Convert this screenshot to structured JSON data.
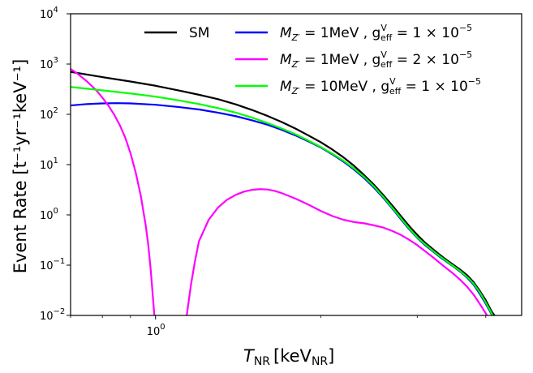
{
  "chart_data": {
    "type": "line",
    "title": "",
    "xlabel_main": "T",
    "xlabel_sub": "NR",
    "xlabel_unit": "[keV",
    "xlabel_unit_sub": "NR",
    "xlabel_close": "]",
    "ylabel": "Event Rate [t⁻¹yr⁻¹keV⁻¹]",
    "xscale": "log",
    "yscale": "log",
    "xlim": [
      0.7,
      4.65
    ],
    "ylim": [
      0.01,
      10000
    ],
    "x_ticks": [
      {
        "value": 1,
        "base": "10",
        "exp": "0"
      }
    ],
    "y_ticks": [
      {
        "value": 0.01,
        "base": "10",
        "exp": "−2"
      },
      {
        "value": 0.1,
        "base": "10",
        "exp": "−1"
      },
      {
        "value": 1,
        "base": "10",
        "exp": "0"
      },
      {
        "value": 10,
        "base": "10",
        "exp": "1"
      },
      {
        "value": 100,
        "base": "10",
        "exp": "2"
      },
      {
        "value": 1000,
        "base": "10",
        "exp": "3"
      },
      {
        "value": 10000,
        "base": "10",
        "exp": "4"
      }
    ],
    "x_minor_ticks": [
      0.7,
      0.8,
      0.9,
      2,
      3,
      4
    ],
    "legend_position": "top-right",
    "series": [
      {
        "name": "SM",
        "label_main": "SM",
        "color": "#000000",
        "points": [
          [
            0.7,
            700
          ],
          [
            0.8,
            550
          ],
          [
            0.9,
            450
          ],
          [
            1.0,
            370
          ],
          [
            1.1,
            300
          ],
          [
            1.2,
            245
          ],
          [
            1.3,
            200
          ],
          [
            1.4,
            158
          ],
          [
            1.5,
            122
          ],
          [
            1.6,
            93
          ],
          [
            1.7,
            70
          ],
          [
            1.8,
            52
          ],
          [
            1.9,
            38
          ],
          [
            2.0,
            28
          ],
          [
            2.1,
            20
          ],
          [
            2.2,
            14
          ],
          [
            2.3,
            9.5
          ],
          [
            2.4,
            6.2
          ],
          [
            2.5,
            4.0
          ],
          [
            2.6,
            2.5
          ],
          [
            2.7,
            1.55
          ],
          [
            2.8,
            0.95
          ],
          [
            2.9,
            0.6
          ],
          [
            3.0,
            0.4
          ],
          [
            3.1,
            0.28
          ],
          [
            3.2,
            0.21
          ],
          [
            3.3,
            0.16
          ],
          [
            3.4,
            0.125
          ],
          [
            3.5,
            0.1
          ],
          [
            3.6,
            0.08
          ],
          [
            3.7,
            0.063
          ],
          [
            3.8,
            0.046
          ],
          [
            3.9,
            0.031
          ],
          [
            4.0,
            0.02
          ],
          [
            4.1,
            0.012
          ],
          [
            4.15,
            0.01
          ]
        ]
      },
      {
        "name": "MZ'=1MeV, g_eff^V=1e-5",
        "label_main": "M",
        "label_sub": "Z′",
        "label_eq": " = 1MeV , g",
        "label_sup2": "V",
        "label_sub2": "eff",
        "label_tail": " = 1 × 10",
        "label_exp": "−5",
        "color": "#0000ff",
        "points": [
          [
            0.7,
            150
          ],
          [
            0.75,
            160
          ],
          [
            0.8,
            165
          ],
          [
            0.85,
            167
          ],
          [
            0.9,
            165
          ],
          [
            1.0,
            155
          ],
          [
            1.1,
            140
          ],
          [
            1.2,
            125
          ],
          [
            1.3,
            108
          ],
          [
            1.4,
            92
          ],
          [
            1.5,
            76
          ],
          [
            1.6,
            62
          ],
          [
            1.7,
            49
          ],
          [
            1.8,
            38
          ],
          [
            1.9,
            29
          ],
          [
            2.0,
            22
          ],
          [
            2.1,
            16
          ],
          [
            2.2,
            11.5
          ],
          [
            2.3,
            8.0
          ],
          [
            2.4,
            5.4
          ],
          [
            2.5,
            3.5
          ],
          [
            2.6,
            2.2
          ],
          [
            2.7,
            1.35
          ],
          [
            2.8,
            0.82
          ],
          [
            2.9,
            0.52
          ],
          [
            3.0,
            0.35
          ],
          [
            3.1,
            0.25
          ],
          [
            3.2,
            0.19
          ],
          [
            3.3,
            0.145
          ],
          [
            3.4,
            0.115
          ],
          [
            3.5,
            0.092
          ],
          [
            3.6,
            0.073
          ],
          [
            3.7,
            0.056
          ],
          [
            3.8,
            0.041
          ],
          [
            3.9,
            0.027
          ],
          [
            4.0,
            0.017
          ],
          [
            4.1,
            0.0105
          ],
          [
            4.12,
            0.01
          ]
        ]
      },
      {
        "name": "MZ'=1MeV, g_eff^V=2e-5",
        "label_main": "M",
        "label_sub": "Z′",
        "label_eq": " = 1MeV , g",
        "label_sup2": "V",
        "label_sub2": "eff",
        "label_tail": " = 2 × 10",
        "label_exp": "−5",
        "color": "#ff00ff",
        "points": [
          [
            0.7,
            800
          ],
          [
            0.72,
            650
          ],
          [
            0.75,
            450
          ],
          [
            0.78,
            300
          ],
          [
            0.8,
            215
          ],
          [
            0.82,
            150
          ],
          [
            0.84,
            100
          ],
          [
            0.86,
            62
          ],
          [
            0.88,
            35
          ],
          [
            0.9,
            17
          ],
          [
            0.92,
            7
          ],
          [
            0.94,
            2.4
          ],
          [
            0.96,
            0.6
          ],
          [
            0.97,
            0.25
          ],
          [
            0.98,
            0.08
          ],
          [
            0.99,
            0.02
          ],
          [
            0.995,
            0.01
          ]
        ]
      },
      {
        "name": "MZ'=1MeV, g_eff^V=2e-5 (upper branch)",
        "color": "#ff00ff",
        "points": [
          [
            1.14,
            0.01
          ],
          [
            1.16,
            0.04
          ],
          [
            1.18,
            0.12
          ],
          [
            1.2,
            0.3
          ],
          [
            1.25,
            0.8
          ],
          [
            1.3,
            1.4
          ],
          [
            1.35,
            2.0
          ],
          [
            1.4,
            2.5
          ],
          [
            1.45,
            2.9
          ],
          [
            1.5,
            3.15
          ],
          [
            1.55,
            3.25
          ],
          [
            1.6,
            3.2
          ],
          [
            1.65,
            3.0
          ],
          [
            1.7,
            2.7
          ],
          [
            1.8,
            2.1
          ],
          [
            1.9,
            1.6
          ],
          [
            2.0,
            1.2
          ],
          [
            2.1,
            0.95
          ],
          [
            2.2,
            0.8
          ],
          [
            2.3,
            0.72
          ],
          [
            2.4,
            0.68
          ],
          [
            2.5,
            0.62
          ],
          [
            2.6,
            0.56
          ],
          [
            2.7,
            0.48
          ],
          [
            2.8,
            0.4
          ],
          [
            2.9,
            0.32
          ],
          [
            3.0,
            0.25
          ],
          [
            3.1,
            0.19
          ],
          [
            3.2,
            0.145
          ],
          [
            3.3,
            0.11
          ],
          [
            3.4,
            0.085
          ],
          [
            3.5,
            0.066
          ],
          [
            3.6,
            0.05
          ],
          [
            3.7,
            0.037
          ],
          [
            3.8,
            0.026
          ],
          [
            3.9,
            0.017
          ],
          [
            4.0,
            0.011
          ],
          [
            4.02,
            0.01
          ]
        ]
      },
      {
        "name": "MZ'=10MeV, g_eff^V=1e-5",
        "label_main": "M",
        "label_sub": "Z′",
        "label_eq": " = 10MeV , g",
        "label_sup2": "V",
        "label_sub2": "eff",
        "label_tail": " = 1 × 10",
        "label_exp": "−5",
        "color": "#00ff00",
        "points": [
          [
            0.7,
            350
          ],
          [
            0.8,
            300
          ],
          [
            0.9,
            260
          ],
          [
            1.0,
            225
          ],
          [
            1.1,
            190
          ],
          [
            1.2,
            160
          ],
          [
            1.3,
            133
          ],
          [
            1.4,
            108
          ],
          [
            1.5,
            86
          ],
          [
            1.6,
            67
          ],
          [
            1.7,
            52
          ],
          [
            1.8,
            40
          ],
          [
            1.9,
            30
          ],
          [
            2.0,
            22.5
          ],
          [
            2.1,
            16.5
          ],
          [
            2.2,
            12
          ],
          [
            2.3,
            8.4
          ],
          [
            2.4,
            5.7
          ],
          [
            2.5,
            3.7
          ],
          [
            2.6,
            2.3
          ],
          [
            2.7,
            1.4
          ],
          [
            2.8,
            0.86
          ],
          [
            2.9,
            0.54
          ],
          [
            3.0,
            0.36
          ],
          [
            3.1,
            0.26
          ],
          [
            3.2,
            0.195
          ],
          [
            3.3,
            0.15
          ],
          [
            3.4,
            0.118
          ],
          [
            3.5,
            0.094
          ],
          [
            3.6,
            0.075
          ],
          [
            3.7,
            0.058
          ],
          [
            3.8,
            0.043
          ],
          [
            3.9,
            0.029
          ],
          [
            4.0,
            0.018
          ],
          [
            4.1,
            0.011
          ],
          [
            4.12,
            0.01
          ]
        ]
      }
    ]
  }
}
